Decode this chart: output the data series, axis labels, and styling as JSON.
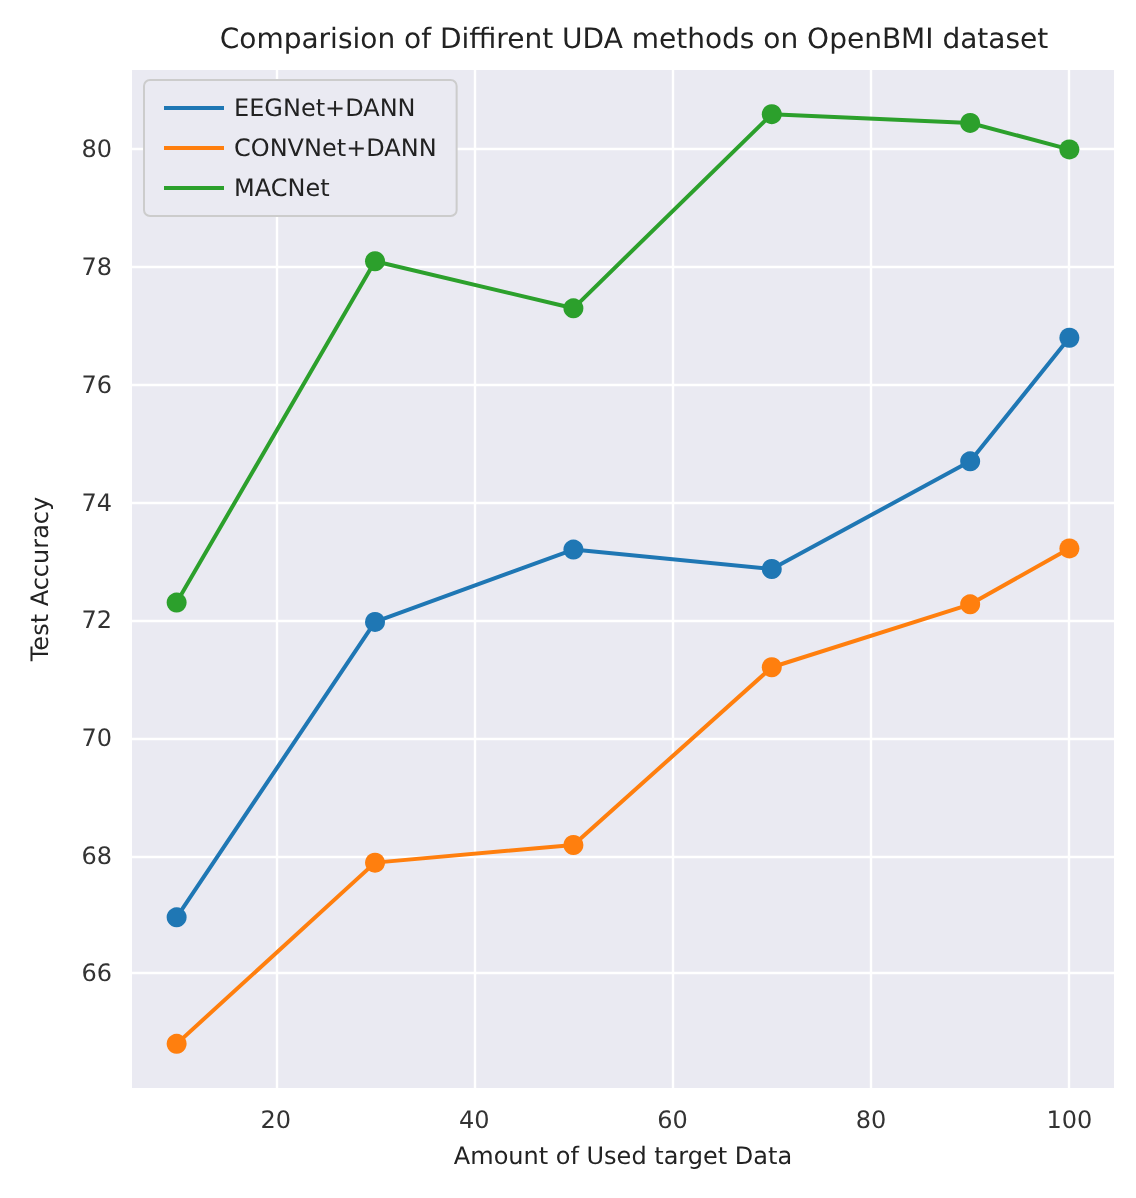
{
  "chart_data": {
    "type": "line",
    "title": "Comparision of Diffirent UDA methods on OpenBMI dataset",
    "xlabel": "Amount of Used target Data",
    "ylabel": "Test Accuracy",
    "x": [
      10,
      30,
      50,
      70,
      90,
      100
    ],
    "series": [
      {
        "name": "EEGNet+DANN",
        "color": "#1f77b4",
        "values": [
          66.95,
          71.97,
          73.2,
          72.87,
          74.7,
          76.8
        ]
      },
      {
        "name": "CONVNet+DANN",
        "color": "#ff7f0e",
        "values": [
          64.8,
          67.88,
          68.18,
          71.2,
          72.27,
          73.22
        ]
      },
      {
        "name": "MACNet",
        "color": "#2ca02c",
        "values": [
          72.3,
          78.1,
          77.3,
          80.6,
          80.45,
          80.0
        ]
      }
    ],
    "xlim": [
      5.5,
      104.5
    ],
    "xticks": [
      20,
      40,
      60,
      80,
      100
    ],
    "ylim": [
      64.05,
      81.35
    ],
    "yticks": [
      66,
      68,
      70,
      72,
      74,
      76,
      78,
      80
    ],
    "grid": true,
    "legend": "top left",
    "marker": "circle",
    "line_style": "solid"
  }
}
